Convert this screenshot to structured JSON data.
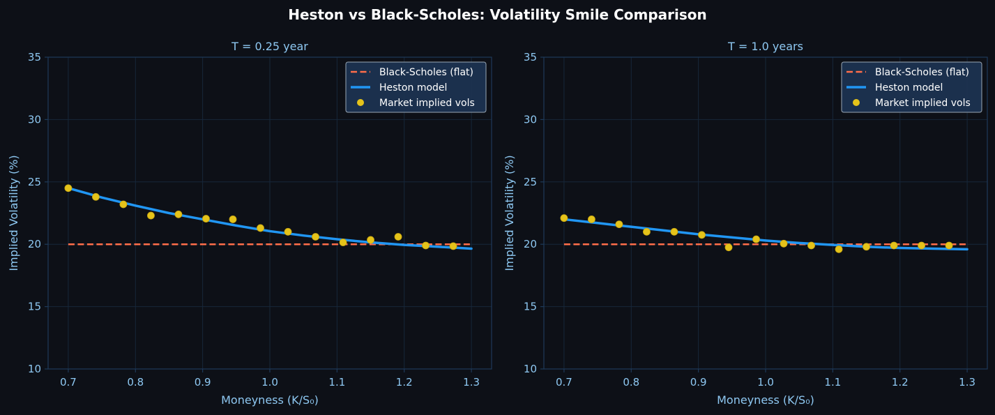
{
  "figure": {
    "suptitle": "Heston vs Black-Scholes: Volatility Smile Comparison"
  },
  "colors": {
    "background": "#0d1017",
    "axes_face": "#0d1017",
    "spine": "#1e3a5a",
    "grid": "#17273a",
    "tick_text": "#8ec8f2",
    "black_scholes": "#ff6e4a",
    "heston": "#2196f3",
    "market": "#e5c31a",
    "legend_face": "#1c3350",
    "legend_edge": "#9aa7b5"
  },
  "chart_data": [
    {
      "type": "line",
      "title": "T = 0.25 year",
      "xlabel": "Moneyness (K/S₀)",
      "ylabel": "Implied Volatility (%)",
      "xlim": [
        0.67,
        1.33
      ],
      "ylim": [
        10,
        35
      ],
      "xticks": [
        0.7,
        0.8,
        0.9,
        1.0,
        1.1,
        1.2,
        1.3
      ],
      "xtick_labels": [
        "0.7",
        "0.8",
        "0.9",
        "1.0",
        "1.1",
        "1.2",
        "1.3"
      ],
      "yticks": [
        10,
        15,
        20,
        25,
        30,
        35
      ],
      "ytick_labels": [
        "10",
        "15",
        "20",
        "25",
        "30",
        "35"
      ],
      "grid": true,
      "legend_position": "upper right",
      "legend": [
        "Black-Scholes (flat)",
        "Heston model",
        "Market implied vols"
      ],
      "series": [
        {
          "name": "Black-Scholes (flat)",
          "style": "dashed",
          "x": [
            0.7,
            1.3
          ],
          "y": [
            20.0,
            20.0
          ]
        },
        {
          "name": "Heston model",
          "style": "solid",
          "x": [
            0.7,
            0.75,
            0.8,
            0.85,
            0.9,
            0.95,
            1.0,
            1.05,
            1.1,
            1.15,
            1.2,
            1.25,
            1.3
          ],
          "y": [
            24.5,
            23.75,
            23.1,
            22.5,
            22.0,
            21.5,
            21.05,
            20.7,
            20.4,
            20.15,
            19.95,
            19.8,
            19.65
          ]
        },
        {
          "name": "Market implied vols",
          "style": "scatter",
          "x": [
            0.7,
            0.741,
            0.782,
            0.823,
            0.864,
            0.905,
            0.945,
            0.986,
            1.027,
            1.068,
            1.109,
            1.15,
            1.191,
            1.232,
            1.273
          ],
          "y": [
            24.5,
            23.8,
            23.2,
            22.3,
            22.4,
            22.05,
            22.0,
            21.3,
            21.0,
            20.6,
            20.15,
            20.35,
            20.6,
            19.9,
            19.85
          ]
        }
      ]
    },
    {
      "type": "line",
      "title": "T = 1.0 years",
      "xlabel": "Moneyness (K/S₀)",
      "ylabel": "Implied Volatility (%)",
      "xlim": [
        0.67,
        1.33
      ],
      "ylim": [
        10,
        35
      ],
      "xticks": [
        0.7,
        0.8,
        0.9,
        1.0,
        1.1,
        1.2,
        1.3
      ],
      "xtick_labels": [
        "0.7",
        "0.8",
        "0.9",
        "1.0",
        "1.1",
        "1.2",
        "1.3"
      ],
      "yticks": [
        10,
        15,
        20,
        25,
        30,
        35
      ],
      "ytick_labels": [
        "10",
        "15",
        "20",
        "25",
        "30",
        "35"
      ],
      "grid": true,
      "legend_position": "upper right",
      "legend": [
        "Black-Scholes (flat)",
        "Heston model",
        "Market implied vols"
      ],
      "series": [
        {
          "name": "Black-Scholes (flat)",
          "style": "dashed",
          "x": [
            0.7,
            1.3
          ],
          "y": [
            20.0,
            20.0
          ]
        },
        {
          "name": "Heston model",
          "style": "solid",
          "x": [
            0.7,
            0.75,
            0.8,
            0.85,
            0.9,
            0.95,
            1.0,
            1.05,
            1.1,
            1.15,
            1.2,
            1.25,
            1.3
          ],
          "y": [
            22.0,
            21.7,
            21.4,
            21.1,
            20.8,
            20.55,
            20.3,
            20.1,
            19.95,
            19.8,
            19.7,
            19.65,
            19.6
          ]
        },
        {
          "name": "Market implied vols",
          "style": "scatter",
          "x": [
            0.7,
            0.741,
            0.782,
            0.823,
            0.864,
            0.905,
            0.945,
            0.986,
            1.027,
            1.068,
            1.109,
            1.15,
            1.191,
            1.232,
            1.273
          ],
          "y": [
            22.1,
            22.0,
            21.6,
            21.0,
            21.0,
            20.75,
            19.75,
            20.4,
            20.05,
            19.9,
            19.6,
            19.8,
            19.9,
            19.9,
            19.9
          ]
        }
      ]
    }
  ]
}
